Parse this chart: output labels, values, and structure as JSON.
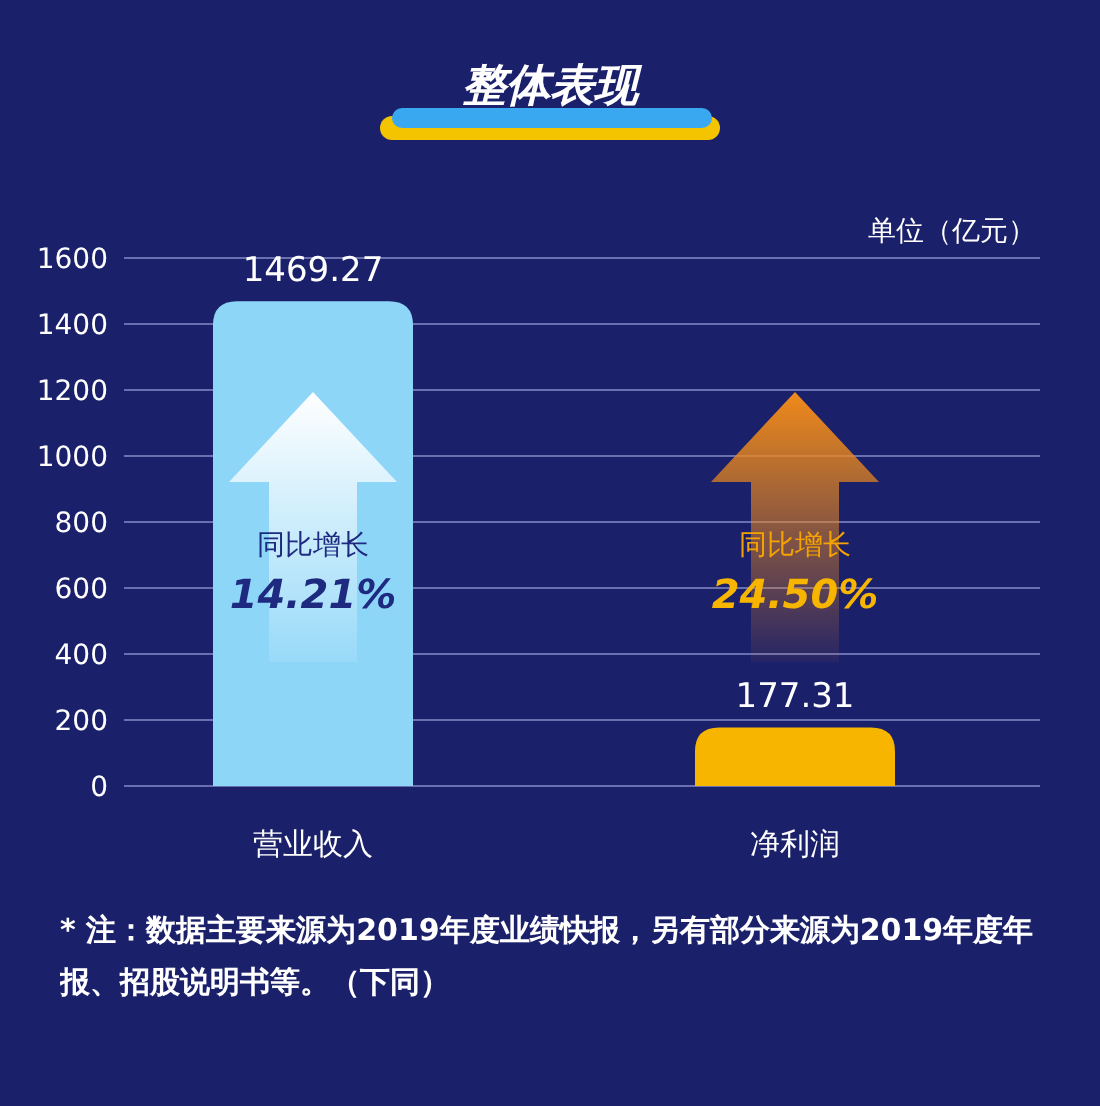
{
  "chart_data": {
    "type": "bar",
    "title": "整体表现",
    "ylabel": "单位（亿元）",
    "categories": [
      "营业收入",
      "净利润"
    ],
    "values": [
      1469.27,
      177.31
    ],
    "colors": [
      "#8dd6f8",
      "#f7b500"
    ],
    "data_labels": true,
    "ylim": [
      0,
      1600
    ],
    "yticks": [
      0,
      200,
      400,
      600,
      800,
      1000,
      1200,
      1400,
      1600
    ],
    "grid": "y",
    "annotations": [
      "同比增长",
      "14.21%",
      "同比增长",
      "24.50%",
      "* 注：数据主要来源为2019年度业绩快报，另有部分来源为2019年度年报、招股说明书等。（下同）"
    ]
  }
}
